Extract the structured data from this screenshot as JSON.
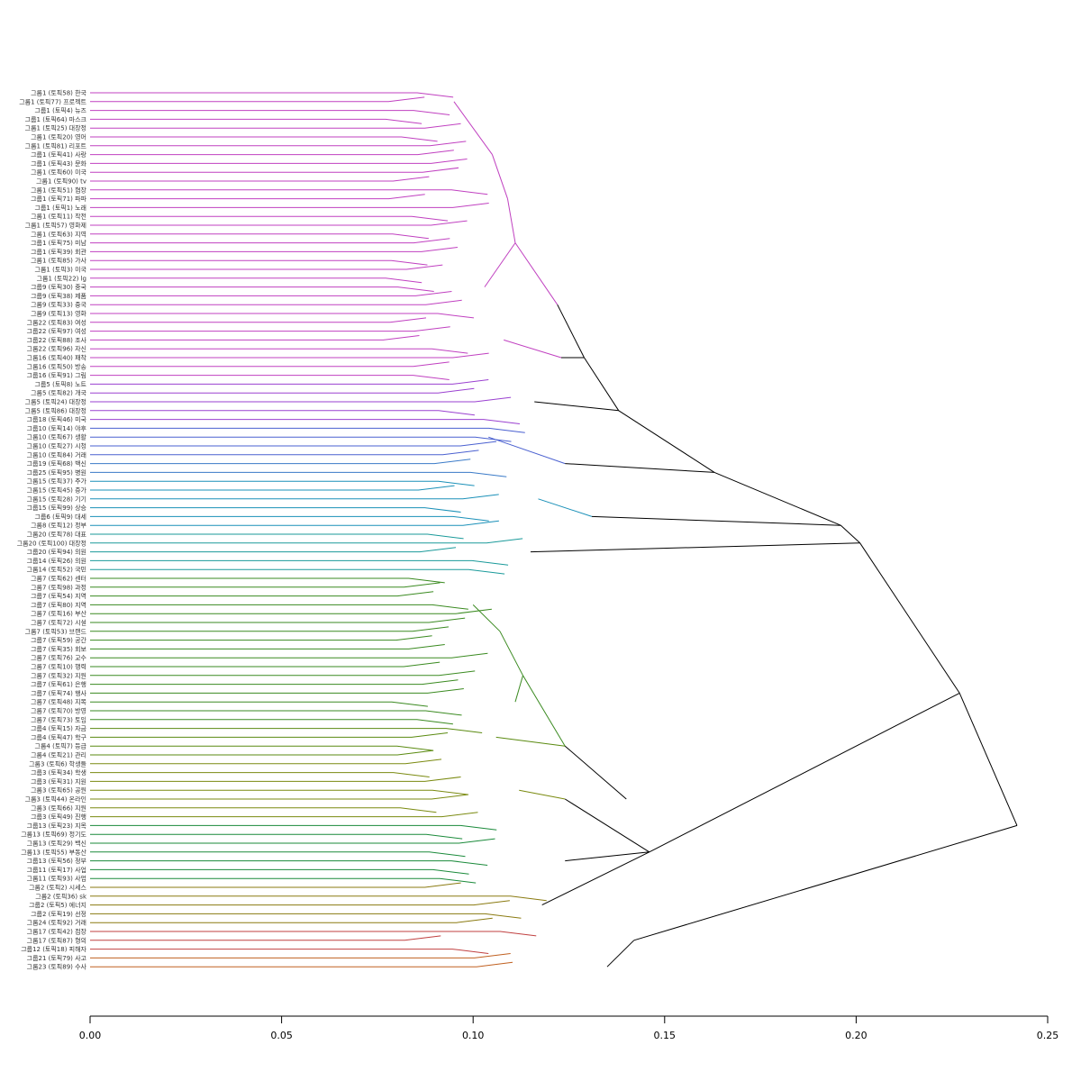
{
  "chart_data": {
    "type": "dendrogram",
    "orientation": "horizontal",
    "xlim": [
      0,
      0.25
    ],
    "ticks": [
      "0.00",
      "0.05",
      "0.10",
      "0.15",
      "0.20",
      "0.25"
    ],
    "tick_values": [
      0,
      0.05,
      0.1,
      0.15,
      0.2,
      0.25
    ],
    "leaves": [
      {
        "label": "그룹1 (토픽58) 한국",
        "color": "#c040c0"
      },
      {
        "label": "그룹1 (토픽77) 프로젝트",
        "color": "#c040c0"
      },
      {
        "label": "그룹1 (토픽4) 뉴즈",
        "color": "#c040c0"
      },
      {
        "label": "그룹1 (토픽64) 마스크",
        "color": "#c040c0"
      },
      {
        "label": "그룹1 (토픽25) 대장정",
        "color": "#c040c0"
      },
      {
        "label": "그룹1 (토픽20) 영어",
        "color": "#c040c0"
      },
      {
        "label": "그룹1 (토픽81) 리포트",
        "color": "#c040c0"
      },
      {
        "label": "그룹1 (토픽41) 사랑",
        "color": "#c040c0"
      },
      {
        "label": "그룹1 (토픽43) 문화",
        "color": "#c040c0"
      },
      {
        "label": "그룹1 (토픽60) 미국",
        "color": "#c040c0"
      },
      {
        "label": "그룹1 (토픽90) tv",
        "color": "#c040c0"
      },
      {
        "label": "그룹1 (토픽51) 협장",
        "color": "#c040c0"
      },
      {
        "label": "그룹1 (토픽71) 파파",
        "color": "#c040c0"
      },
      {
        "label": "그룹1 (토픽1) 노래",
        "color": "#c040c0"
      },
      {
        "label": "그룹1 (토픽11) 작전",
        "color": "#c040c0"
      },
      {
        "label": "그룹1 (토픽57) 영화제",
        "color": "#c040c0"
      },
      {
        "label": "그룹1 (토픽63) 지역",
        "color": "#c040c0"
      },
      {
        "label": "그룹1 (토픽75) 미남",
        "color": "#c040c0"
      },
      {
        "label": "그룹1 (토픽39) 회관",
        "color": "#c040c0"
      },
      {
        "label": "그룹1 (토픽85) 가사",
        "color": "#c040c0"
      },
      {
        "label": "그룹1 (토픽3) 미국",
        "color": "#c040c0"
      },
      {
        "label": "그룹1 (토픽22) lg",
        "color": "#c040c0"
      },
      {
        "label": "그룹9 (토픽30) 중국",
        "color": "#c040c0"
      },
      {
        "label": "그룹9 (토픽38) 제품",
        "color": "#c040c0"
      },
      {
        "label": "그룹9 (토픽33) 중국",
        "color": "#c040c0"
      },
      {
        "label": "그룹9 (토픽13) 영화",
        "color": "#c040c0"
      },
      {
        "label": "그룹22 (토픽83) 여성",
        "color": "#c040c0"
      },
      {
        "label": "그룹22 (토픽97) 여성",
        "color": "#c040c0"
      },
      {
        "label": "그룹22 (토픽88) 조사",
        "color": "#c040c0"
      },
      {
        "label": "그룹22 (토픽96) 자신",
        "color": "#c040c0"
      },
      {
        "label": "그룹16 (토픽40) 패착",
        "color": "#c040c0"
      },
      {
        "label": "그룹16 (토픽50) 방송",
        "color": "#c040c0"
      },
      {
        "label": "그룹16 (토픽91) 그림",
        "color": "#c040c0"
      },
      {
        "label": "그룹5 (토픽8) 노트",
        "color": "#9a40d0"
      },
      {
        "label": "그룹5 (토픽82) 개국",
        "color": "#9a40d0"
      },
      {
        "label": "그룹5 (토픽24) 대장정",
        "color": "#9a40d0"
      },
      {
        "label": "그룹5 (토픽86) 대장정",
        "color": "#9a40d0"
      },
      {
        "label": "그룹18 (토픽46) 미국",
        "color": "#9a40d0"
      },
      {
        "label": "그룹10 (토픽14) 야후",
        "color": "#4a60d0"
      },
      {
        "label": "그룹10 (토픽67) 생활",
        "color": "#4a60d0"
      },
      {
        "label": "그룹10 (토픽27) 시청",
        "color": "#4a60d0"
      },
      {
        "label": "그룹10 (토픽84) 거래",
        "color": "#4a60d0"
      },
      {
        "label": "그룹19 (토픽68) 백신",
        "color": "#3a7ac8"
      },
      {
        "label": "그룹25 (토픽95) 병원",
        "color": "#3a7ac8"
      },
      {
        "label": "그룹15 (토픽37) 주가",
        "color": "#1a90b8"
      },
      {
        "label": "그룹15 (토픽45) 증가",
        "color": "#1a90b8"
      },
      {
        "label": "그룹15 (토픽28) 기기",
        "color": "#1a90b8"
      },
      {
        "label": "그룹15 (토픽99) 상승",
        "color": "#1a90b8"
      },
      {
        "label": "그룹6 (토픽9) 대세",
        "color": "#1a90b8"
      },
      {
        "label": "그룹8 (토픽12) 정부",
        "color": "#1a90b8"
      },
      {
        "label": "그룹20 (토픽78) 대표",
        "color": "#1a9a9a"
      },
      {
        "label": "그룹20 (토픽100) 대장정",
        "color": "#1a9a9a"
      },
      {
        "label": "그룹20 (토픽94) 의원",
        "color": "#1a9a9a"
      },
      {
        "label": "그룹14 (토픽26) 의원",
        "color": "#1a9a9a"
      },
      {
        "label": "그룹14 (토픽52) 국민",
        "color": "#1a9a9a"
      },
      {
        "label": "그룹7 (토픽62) 센터",
        "color": "#3a8a20"
      },
      {
        "label": "그룹7 (토픽98) 과정",
        "color": "#3a8a20"
      },
      {
        "label": "그룹7 (토픽54) 지역",
        "color": "#3a8a20"
      },
      {
        "label": "그룹7 (토픽80) 지역",
        "color": "#3a8a20"
      },
      {
        "label": "그룹7 (토픽16) 부산",
        "color": "#3a8a20"
      },
      {
        "label": "그룹7 (토픽72) 시설",
        "color": "#3a8a20"
      },
      {
        "label": "그룹7 (토픽53) 브랜드",
        "color": "#3a8a20"
      },
      {
        "label": "그룹7 (토픽59) 공간",
        "color": "#3a8a20"
      },
      {
        "label": "그룹7 (토픽35) 회보",
        "color": "#3a8a20"
      },
      {
        "label": "그룹7 (토픽76) 교수",
        "color": "#3a8a20"
      },
      {
        "label": "그룹7 (토픽10) 행력",
        "color": "#3a8a20"
      },
      {
        "label": "그룹7 (토픽32) 지원",
        "color": "#3a8a20"
      },
      {
        "label": "그룹7 (토픽61) 은행",
        "color": "#3a8a20"
      },
      {
        "label": "그룹7 (토픽74) 행사",
        "color": "#3a8a20"
      },
      {
        "label": "그룹7 (토픽48) 지목",
        "color": "#3a8a20"
      },
      {
        "label": "그룹7 (토픽70) 방영",
        "color": "#3a8a20"
      },
      {
        "label": "그룹7 (토픽73) 토임",
        "color": "#3a8a20"
      },
      {
        "label": "그룹4 (토픽15) 자금",
        "color": "#5a8a10"
      },
      {
        "label": "그룹4 (토픽47) 학구",
        "color": "#5a8a10"
      },
      {
        "label": "그룹4 (토픽7) 등급",
        "color": "#5a8a10"
      },
      {
        "label": "그룹4 (토픽21) 관리",
        "color": "#5a8a10"
      },
      {
        "label": "그룹3 (토픽6) 학생들",
        "color": "#7a8a10"
      },
      {
        "label": "그룹3 (토픽34) 학생",
        "color": "#7a8a10"
      },
      {
        "label": "그룹3 (토픽31) 지원",
        "color": "#7a8a10"
      },
      {
        "label": "그룹3 (토픽65) 공원",
        "color": "#7a8a10"
      },
      {
        "label": "그룹3 (토픽44) 온라인",
        "color": "#7a8a10"
      },
      {
        "label": "그룹3 (토픽66) 지원",
        "color": "#7a8a10"
      },
      {
        "label": "그룹3 (토픽49) 진행",
        "color": "#7a8a10"
      },
      {
        "label": "그룹13 (토픽23) 지목",
        "color": "#1a8a3a"
      },
      {
        "label": "그룹13 (토픽69) 정기도",
        "color": "#1a8a3a"
      },
      {
        "label": "그룹13 (토픽29) 백신",
        "color": "#1a8a3a"
      },
      {
        "label": "그룹13 (토픽55) 부동산",
        "color": "#1a8a3a"
      },
      {
        "label": "그룹13 (토픽56) 정부",
        "color": "#1a8a3a"
      },
      {
        "label": "그룹11 (토픽17) 사업",
        "color": "#1a8a3a"
      },
      {
        "label": "그룹11 (토픽93) 사업",
        "color": "#1a8a3a"
      },
      {
        "label": "그룹2 (토픽2) 시세스",
        "color": "#8a7a10"
      },
      {
        "label": "그룹2 (토픽36) sk",
        "color": "#8a7a10"
      },
      {
        "label": "그룹2 (토픽5) 에너지",
        "color": "#8a7a10"
      },
      {
        "label": "그룹2 (토픽19) 선정",
        "color": "#8a7a10"
      },
      {
        "label": "그룹24 (토픽92) 거래",
        "color": "#8a7a10"
      },
      {
        "label": "그룹17 (토픽42) 점장",
        "color": "#c04040"
      },
      {
        "label": "그룹17 (토픽87) 형의",
        "color": "#c04040"
      },
      {
        "label": "그룹12 (토픽18) 피해자",
        "color": "#c04040"
      },
      {
        "label": "그룹21 (토픽79) 사고",
        "color": "#c06020"
      },
      {
        "label": "그룹23 (토픽89) 수사",
        "color": "#c06020"
      }
    ]
  }
}
